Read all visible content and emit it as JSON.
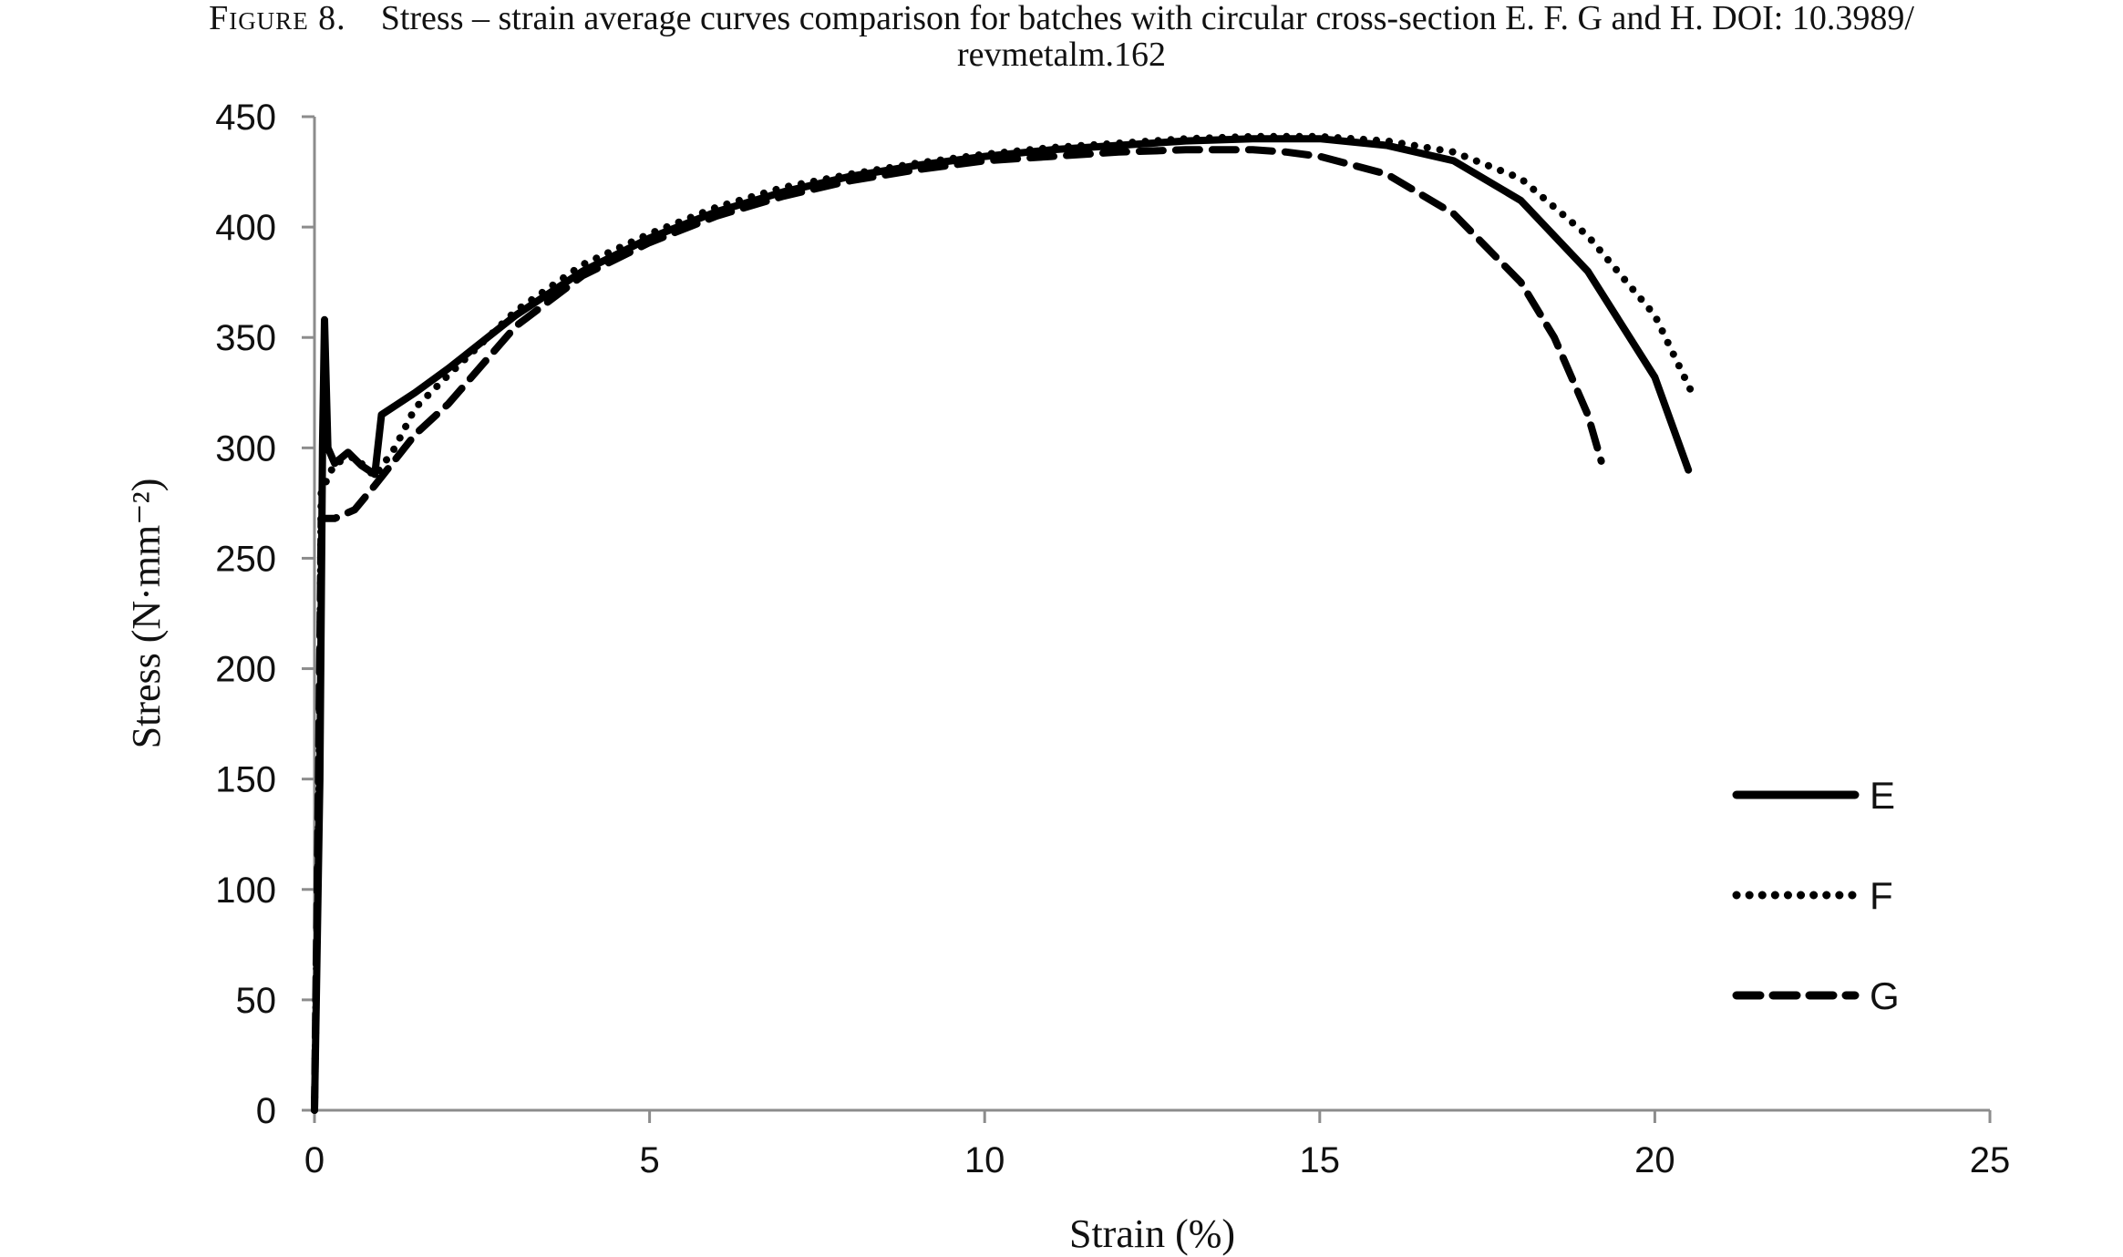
{
  "figure": {
    "label": "Figure 8.",
    "caption_line1": "Stress – strain average curves comparison for batches with circular cross-section E. F. G and H.  DOI: 10.3989/",
    "caption_line2": "revmetalm.162"
  },
  "chart_data": {
    "type": "line",
    "title": "",
    "xlabel": "Strain (%)",
    "ylabel": "Stress (N·mm⁻²)",
    "xlim": [
      0,
      25
    ],
    "ylim": [
      0,
      450
    ],
    "xticks": [
      0,
      5,
      10,
      15,
      20,
      25
    ],
    "yticks": [
      0,
      50,
      100,
      150,
      200,
      250,
      300,
      350,
      400,
      450
    ],
    "grid": false,
    "legend_position": "right",
    "series": [
      {
        "name": "E",
        "style": "solid",
        "color": "#000000",
        "points": [
          [
            0,
            0
          ],
          [
            0.08,
            150
          ],
          [
            0.12,
            300
          ],
          [
            0.15,
            358
          ],
          [
            0.2,
            300
          ],
          [
            0.3,
            293
          ],
          [
            0.5,
            298
          ],
          [
            0.7,
            292
          ],
          [
            0.9,
            288
          ],
          [
            1.0,
            315
          ],
          [
            1.5,
            325
          ],
          [
            2,
            336
          ],
          [
            3,
            360
          ],
          [
            4,
            380
          ],
          [
            5,
            395
          ],
          [
            6,
            407
          ],
          [
            7,
            416
          ],
          [
            8,
            423
          ],
          [
            9,
            428
          ],
          [
            10,
            432
          ],
          [
            11,
            435
          ],
          [
            12,
            437
          ],
          [
            13,
            439
          ],
          [
            14,
            440
          ],
          [
            15,
            440
          ],
          [
            16,
            437
          ],
          [
            17,
            430
          ],
          [
            18,
            412
          ],
          [
            19,
            380
          ],
          [
            20,
            332
          ],
          [
            20.5,
            290
          ]
        ]
      },
      {
        "name": "F",
        "style": "dotted",
        "color": "#000000",
        "points": [
          [
            0,
            0
          ],
          [
            0.07,
            150
          ],
          [
            0.1,
            280
          ],
          [
            0.3,
            293
          ],
          [
            0.6,
            296
          ],
          [
            0.8,
            290
          ],
          [
            0.9,
            287
          ],
          [
            1.2,
            300
          ],
          [
            1.5,
            318
          ],
          [
            2,
            333
          ],
          [
            3,
            362
          ],
          [
            4,
            383
          ],
          [
            5,
            397
          ],
          [
            6,
            409
          ],
          [
            7,
            418
          ],
          [
            8,
            424
          ],
          [
            9,
            429
          ],
          [
            10,
            433
          ],
          [
            11,
            436
          ],
          [
            12,
            438
          ],
          [
            13,
            440
          ],
          [
            14,
            441
          ],
          [
            15,
            441
          ],
          [
            16,
            439
          ],
          [
            17,
            434
          ],
          [
            18,
            422
          ],
          [
            19,
            396
          ],
          [
            20,
            360
          ],
          [
            20.6,
            322
          ]
        ]
      },
      {
        "name": "G",
        "style": "dashed",
        "color": "#000000",
        "points": [
          [
            0,
            0
          ],
          [
            0.06,
            150
          ],
          [
            0.1,
            268
          ],
          [
            0.3,
            268
          ],
          [
            0.6,
            272
          ],
          [
            0.9,
            283
          ],
          [
            1.5,
            306
          ],
          [
            2,
            320
          ],
          [
            3,
            355
          ],
          [
            4,
            378
          ],
          [
            5,
            393
          ],
          [
            6,
            405
          ],
          [
            7,
            414
          ],
          [
            8,
            421
          ],
          [
            9,
            426
          ],
          [
            10,
            430
          ],
          [
            11,
            432
          ],
          [
            12,
            434
          ],
          [
            13,
            435
          ],
          [
            14,
            435
          ],
          [
            14.5,
            434
          ],
          [
            15,
            432
          ],
          [
            16,
            424
          ],
          [
            17,
            406
          ],
          [
            18,
            375
          ],
          [
            18.5,
            350
          ],
          [
            19,
            315
          ],
          [
            19.2,
            294
          ]
        ]
      }
    ]
  }
}
